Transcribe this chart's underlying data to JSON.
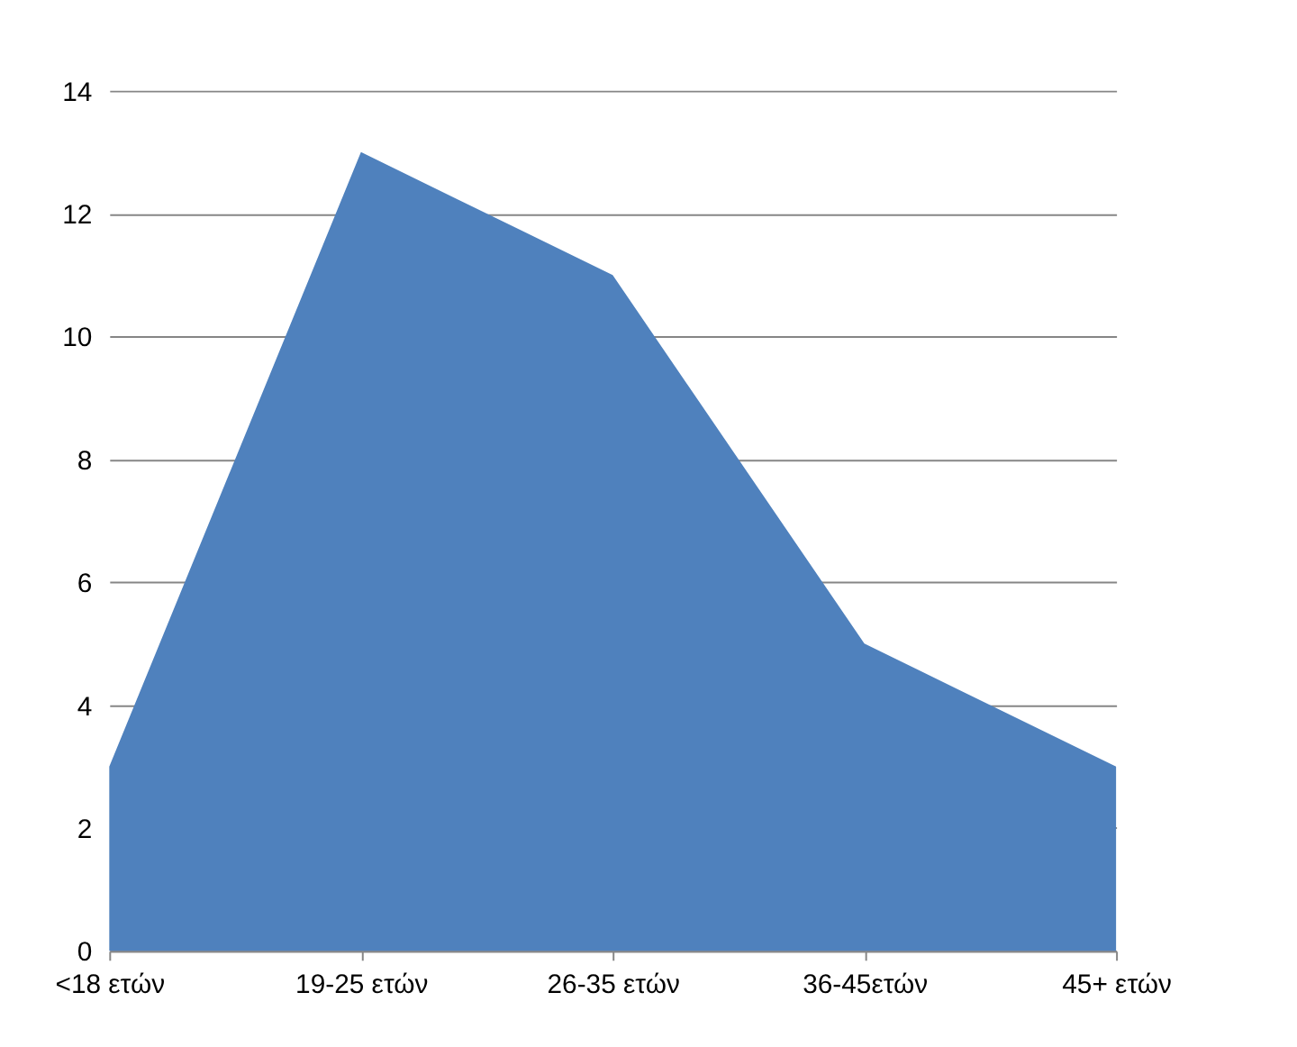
{
  "chart_data": {
    "type": "area",
    "categories": [
      "<18 ετών",
      "19-25 ετών",
      "26-35 ετών",
      "36-45ετών",
      "45+ ετών"
    ],
    "series": [
      {
        "color": "#4f81bd",
        "values": [
          3,
          13,
          11,
          5,
          3
        ]
      }
    ],
    "ylim": [
      0,
      14
    ],
    "yticks": [
      0,
      2,
      4,
      6,
      8,
      10,
      12,
      14
    ],
    "grid": "y"
  }
}
